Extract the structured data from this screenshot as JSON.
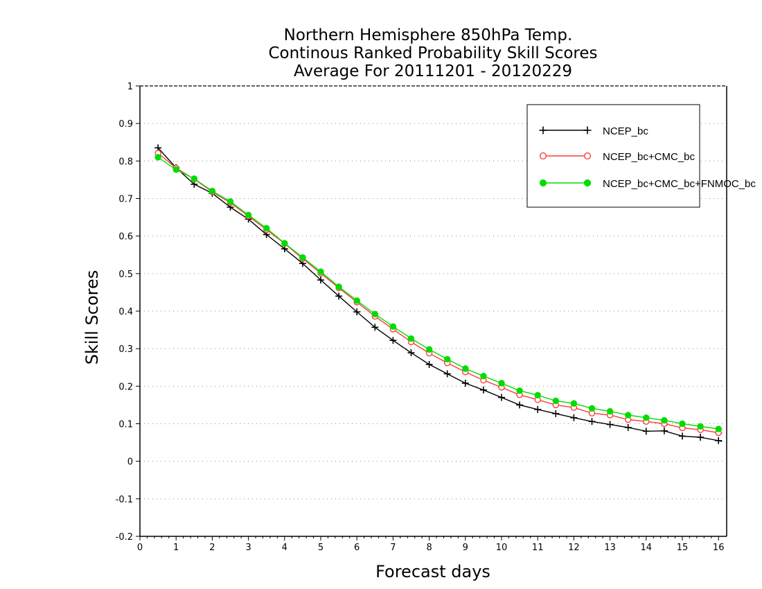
{
  "chart_data": {
    "type": "line",
    "title_lines": [
      "Northern Hemisphere 850hPa Temp.",
      "Continous Ranked Probability Skill Scores",
      "Average For 20111201 - 20120229"
    ],
    "xlabel": "Forecast days",
    "ylabel": "Skill Scores",
    "xlim": [
      0,
      16.1
    ],
    "ylim": [
      -0.2,
      1
    ],
    "xticks": [
      0,
      1,
      2,
      3,
      4,
      5,
      6,
      7,
      8,
      9,
      10,
      11,
      12,
      13,
      14,
      15,
      16
    ],
    "xtick_labels": [
      "0",
      "1",
      "2",
      "3",
      "4",
      "5",
      "6",
      "7",
      "8",
      "9",
      "10",
      "11",
      "12",
      "13",
      "14",
      "15",
      "16"
    ],
    "yticks": [
      -0.2,
      -0.1,
      0,
      0.1,
      0.2,
      0.3,
      0.4,
      0.5,
      0.6,
      0.7,
      0.8,
      0.9,
      1
    ],
    "ytick_labels": [
      "-0.2",
      "-0.1",
      "0",
      "0.1",
      "0.2",
      "0.3",
      "0.4",
      "0.5",
      "0.6",
      "0.7",
      "0.8",
      "0.9",
      "1"
    ],
    "grid": "horizontal dotted",
    "legend_position": "top-right",
    "x": [
      0.5,
      1,
      1.5,
      2,
      2.5,
      3,
      3.5,
      4,
      4.5,
      5,
      5.5,
      6,
      6.5,
      7,
      7.5,
      8,
      8.5,
      9,
      9.5,
      10,
      10.5,
      11,
      11.5,
      12,
      12.5,
      13,
      13.5,
      14,
      14.5,
      15,
      15.5,
      16,
      16.1
    ],
    "series": [
      {
        "name": "NCEP_bc",
        "color": "#000000",
        "marker": "plus",
        "values": [
          0.835,
          0.782,
          0.738,
          0.714,
          0.677,
          0.645,
          0.604,
          0.566,
          0.527,
          0.483,
          0.44,
          0.398,
          0.357,
          0.322,
          0.289,
          0.258,
          0.233,
          0.208,
          0.19,
          0.17,
          0.15,
          0.138,
          0.127,
          0.116,
          0.106,
          0.098,
          0.09,
          0.08,
          0.081,
          0.067,
          0.064,
          0.055,
          0.053
        ]
      },
      {
        "name": "NCEP_bc+CMC_bc",
        "color": "#ff3b3b",
        "marker": "open-circle",
        "values": [
          0.821,
          0.781,
          0.752,
          0.718,
          0.689,
          0.653,
          0.617,
          0.58,
          0.54,
          0.501,
          0.462,
          0.424,
          0.386,
          0.352,
          0.318,
          0.288,
          0.262,
          0.238,
          0.216,
          0.197,
          0.177,
          0.164,
          0.15,
          0.143,
          0.128,
          0.123,
          0.111,
          0.106,
          0.1,
          0.089,
          0.084,
          0.076,
          0.075
        ]
      },
      {
        "name": "NCEP_bc+CMC_bc+FNMOC_bc",
        "color": "#00dd00",
        "marker": "filled-circle",
        "values": [
          0.81,
          0.777,
          0.753,
          0.72,
          0.692,
          0.656,
          0.621,
          0.581,
          0.543,
          0.505,
          0.465,
          0.428,
          0.392,
          0.359,
          0.327,
          0.298,
          0.272,
          0.247,
          0.227,
          0.208,
          0.188,
          0.176,
          0.161,
          0.154,
          0.141,
          0.133,
          0.123,
          0.116,
          0.109,
          0.1,
          0.093,
          0.086,
          0.085
        ]
      }
    ]
  }
}
